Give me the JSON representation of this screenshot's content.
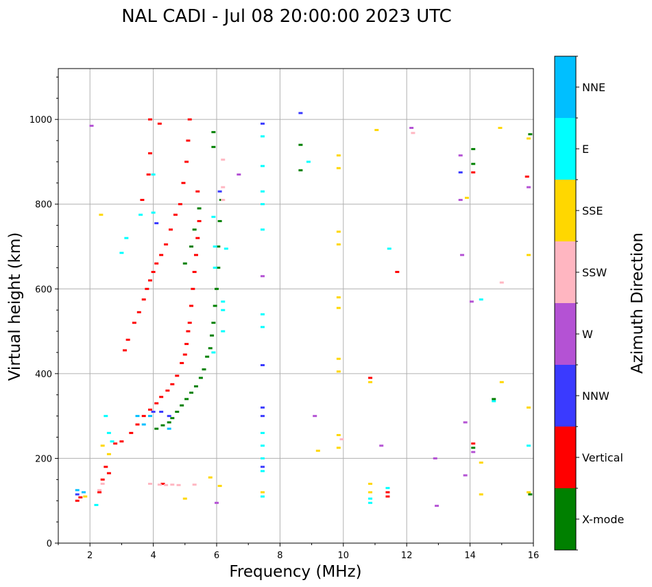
{
  "chart_data": {
    "type": "scatter",
    "title": "NAL CADI - Jul 08 20:00:00 2023 UTC",
    "xlabel": "Frequency (MHz)",
    "ylabel": "Virtual height (km)",
    "xlim": [
      1.0,
      16.0
    ],
    "ylim": [
      0,
      1120
    ],
    "xticks": [
      2,
      4,
      6,
      8,
      10,
      12,
      14,
      16
    ],
    "yticks": [
      0,
      200,
      400,
      600,
      800,
      1000
    ],
    "grid": true,
    "colorbar": {
      "label": "Azimuth Direction",
      "position": "right",
      "categories": [
        "X-mode",
        "Vertical",
        "NNW",
        "W",
        "SSW",
        "SSE",
        "E",
        "NNE"
      ],
      "colors": [
        "#008000",
        "#ff0000",
        "#3a3aff",
        "#b452d4",
        "#ffb6c1",
        "#ffd700",
        "#00ffff",
        "#00bfff"
      ]
    },
    "series": [
      {
        "name": "Vertical",
        "points": [
          [
            1.6,
            100
          ],
          [
            1.7,
            108
          ],
          [
            2.3,
            120
          ],
          [
            2.4,
            150
          ],
          [
            2.5,
            180
          ],
          [
            2.6,
            165
          ],
          [
            2.8,
            235
          ],
          [
            3.0,
            240
          ],
          [
            3.1,
            455
          ],
          [
            3.2,
            480
          ],
          [
            3.4,
            520
          ],
          [
            3.55,
            545
          ],
          [
            3.7,
            575
          ],
          [
            3.8,
            600
          ],
          [
            3.9,
            620
          ],
          [
            4.0,
            640
          ],
          [
            4.1,
            660
          ],
          [
            4.25,
            680
          ],
          [
            4.4,
            705
          ],
          [
            4.55,
            740
          ],
          [
            4.7,
            775
          ],
          [
            4.85,
            800
          ],
          [
            4.95,
            850
          ],
          [
            5.05,
            900
          ],
          [
            5.1,
            950
          ],
          [
            5.15,
            1000
          ],
          [
            3.3,
            260
          ],
          [
            3.5,
            280
          ],
          [
            3.7,
            300
          ],
          [
            3.9,
            315
          ],
          [
            4.1,
            330
          ],
          [
            4.25,
            345
          ],
          [
            4.45,
            360
          ],
          [
            4.6,
            375
          ],
          [
            4.75,
            395
          ],
          [
            4.9,
            425
          ],
          [
            5.0,
            445
          ],
          [
            5.05,
            470
          ],
          [
            5.1,
            500
          ],
          [
            5.15,
            520
          ],
          [
            5.2,
            560
          ],
          [
            5.25,
            600
          ],
          [
            5.3,
            640
          ],
          [
            5.35,
            680
          ],
          [
            5.4,
            720
          ],
          [
            5.45,
            760
          ],
          [
            5.4,
            830
          ],
          [
            3.9,
            1000
          ],
          [
            4.2,
            990
          ],
          [
            3.9,
            920
          ],
          [
            3.85,
            870
          ],
          [
            3.65,
            810
          ],
          [
            4.3,
            140
          ],
          [
            10.85,
            390
          ],
          [
            11.4,
            110
          ],
          [
            11.4,
            120
          ],
          [
            11.7,
            640
          ],
          [
            14.1,
            235
          ],
          [
            14.1,
            875
          ],
          [
            15.8,
            865
          ]
        ]
      },
      {
        "name": "X-mode",
        "points": [
          [
            4.1,
            270
          ],
          [
            4.3,
            278
          ],
          [
            4.5,
            285
          ],
          [
            4.6,
            295
          ],
          [
            4.75,
            310
          ],
          [
            4.9,
            325
          ],
          [
            5.05,
            340
          ],
          [
            5.2,
            355
          ],
          [
            5.35,
            370
          ],
          [
            5.5,
            390
          ],
          [
            5.6,
            410
          ],
          [
            5.7,
            440
          ],
          [
            5.8,
            460
          ],
          [
            5.85,
            490
          ],
          [
            5.9,
            520
          ],
          [
            5.95,
            560
          ],
          [
            6.0,
            600
          ],
          [
            6.05,
            650
          ],
          [
            6.05,
            700
          ],
          [
            6.1,
            760
          ],
          [
            6.15,
            810
          ],
          [
            5.9,
            970
          ],
          [
            5.9,
            935
          ],
          [
            5.0,
            660
          ],
          [
            5.2,
            700
          ],
          [
            5.3,
            740
          ],
          [
            5.45,
            790
          ],
          [
            8.65,
            880
          ],
          [
            8.65,
            940
          ],
          [
            14.1,
            930
          ],
          [
            14.1,
            895
          ],
          [
            14.1,
            225
          ],
          [
            14.75,
            340
          ],
          [
            15.9,
            965
          ],
          [
            15.9,
            115
          ]
        ]
      },
      {
        "name": "NNW",
        "points": [
          [
            1.6,
            115
          ],
          [
            4.0,
            310
          ],
          [
            4.25,
            310
          ],
          [
            4.1,
            755
          ],
          [
            4.5,
            300
          ],
          [
            6.1,
            830
          ],
          [
            7.45,
            990
          ],
          [
            7.45,
            420
          ],
          [
            7.45,
            320
          ],
          [
            7.45,
            300
          ],
          [
            7.45,
            180
          ],
          [
            8.65,
            1015
          ],
          [
            13.7,
            875
          ]
        ]
      },
      {
        "name": "W",
        "points": [
          [
            2.05,
            985
          ],
          [
            6.0,
            95
          ],
          [
            6.7,
            870
          ],
          [
            7.45,
            630
          ],
          [
            9.1,
            300
          ],
          [
            11.2,
            230
          ],
          [
            12.15,
            980
          ],
          [
            12.9,
            200
          ],
          [
            12.95,
            88
          ],
          [
            13.7,
            915
          ],
          [
            13.7,
            810
          ],
          [
            13.75,
            680
          ],
          [
            13.85,
            285
          ],
          [
            13.85,
            160
          ],
          [
            14.05,
            570
          ],
          [
            14.1,
            215
          ],
          [
            15.85,
            840
          ]
        ]
      },
      {
        "name": "SSW",
        "points": [
          [
            2.3,
            125
          ],
          [
            2.4,
            140
          ],
          [
            3.9,
            140
          ],
          [
            4.2,
            138
          ],
          [
            4.4,
            137
          ],
          [
            4.6,
            138
          ],
          [
            4.8,
            137
          ],
          [
            5.3,
            138
          ],
          [
            6.2,
            840
          ],
          [
            6.2,
            810
          ],
          [
            6.2,
            905
          ],
          [
            9.95,
            245
          ],
          [
            12.2,
            968
          ],
          [
            15.0,
            615
          ]
        ]
      },
      {
        "name": "SSE",
        "points": [
          [
            1.85,
            110
          ],
          [
            2.4,
            230
          ],
          [
            2.6,
            210
          ],
          [
            2.35,
            775
          ],
          [
            5.0,
            105
          ],
          [
            5.8,
            155
          ],
          [
            6.1,
            135
          ],
          [
            7.45,
            120
          ],
          [
            9.2,
            218
          ],
          [
            9.85,
            915
          ],
          [
            9.85,
            885
          ],
          [
            9.85,
            735
          ],
          [
            9.85,
            705
          ],
          [
            9.85,
            580
          ],
          [
            9.85,
            555
          ],
          [
            9.85,
            435
          ],
          [
            9.85,
            405
          ],
          [
            9.85,
            255
          ],
          [
            9.85,
            225
          ],
          [
            10.85,
            380
          ],
          [
            10.85,
            140
          ],
          [
            10.85,
            120
          ],
          [
            11.05,
            975
          ],
          [
            13.9,
            815
          ],
          [
            14.35,
            190
          ],
          [
            14.35,
            115
          ],
          [
            14.95,
            980
          ],
          [
            15.0,
            380
          ],
          [
            15.85,
            955
          ],
          [
            15.85,
            680
          ],
          [
            15.85,
            320
          ],
          [
            15.85,
            120
          ]
        ]
      },
      {
        "name": "E",
        "points": [
          [
            2.2,
            90
          ],
          [
            2.5,
            300
          ],
          [
            2.6,
            260
          ],
          [
            2.7,
            240
          ],
          [
            3.0,
            685
          ],
          [
            3.15,
            720
          ],
          [
            3.6,
            775
          ],
          [
            4.0,
            870
          ],
          [
            4.0,
            780
          ],
          [
            5.9,
            770
          ],
          [
            5.95,
            700
          ],
          [
            5.95,
            650
          ],
          [
            5.9,
            450
          ],
          [
            6.2,
            570
          ],
          [
            6.2,
            550
          ],
          [
            6.2,
            500
          ],
          [
            6.3,
            695
          ],
          [
            7.45,
            960
          ],
          [
            7.45,
            890
          ],
          [
            7.45,
            830
          ],
          [
            7.45,
            800
          ],
          [
            7.45,
            740
          ],
          [
            7.45,
            540
          ],
          [
            7.45,
            510
          ],
          [
            7.45,
            260
          ],
          [
            7.45,
            230
          ],
          [
            7.45,
            200
          ],
          [
            7.45,
            170
          ],
          [
            7.45,
            110
          ],
          [
            8.9,
            900
          ],
          [
            10.85,
            105
          ],
          [
            10.85,
            95
          ],
          [
            11.45,
            695
          ],
          [
            11.4,
            130
          ],
          [
            14.35,
            575
          ],
          [
            14.75,
            335
          ],
          [
            15.85,
            230
          ]
        ]
      },
      {
        "name": "NNE",
        "points": [
          [
            1.6,
            125
          ],
          [
            1.8,
            120
          ],
          [
            3.5,
            300
          ],
          [
            3.7,
            280
          ],
          [
            3.9,
            300
          ],
          [
            4.5,
            270
          ]
        ]
      }
    ]
  }
}
